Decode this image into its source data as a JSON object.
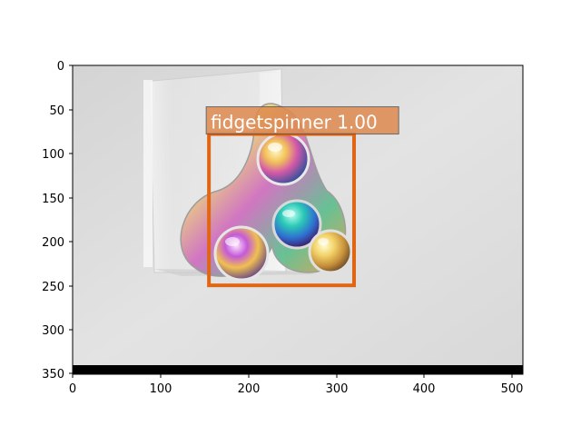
{
  "figure": {
    "image_width": 512,
    "image_height": 351,
    "x_ticks": [
      "0",
      "100",
      "200",
      "300",
      "400",
      "500"
    ],
    "y_ticks": [
      "0",
      "50",
      "100",
      "150",
      "200",
      "250",
      "300",
      "350"
    ]
  },
  "detections": [
    {
      "label": "fidgetspinner 1.00",
      "box": {
        "x1": 155,
        "y1": 78,
        "x2": 320,
        "y2": 250
      },
      "color": "#e06614"
    }
  ],
  "colors": {
    "background_photo": "#d9d9d9",
    "box_stroke": "#e06614",
    "label_fill": "#de8a4f",
    "padding_band": "#000000"
  },
  "scene": {
    "objects": [
      "fidgetspinner",
      "acrylic-stand"
    ]
  }
}
